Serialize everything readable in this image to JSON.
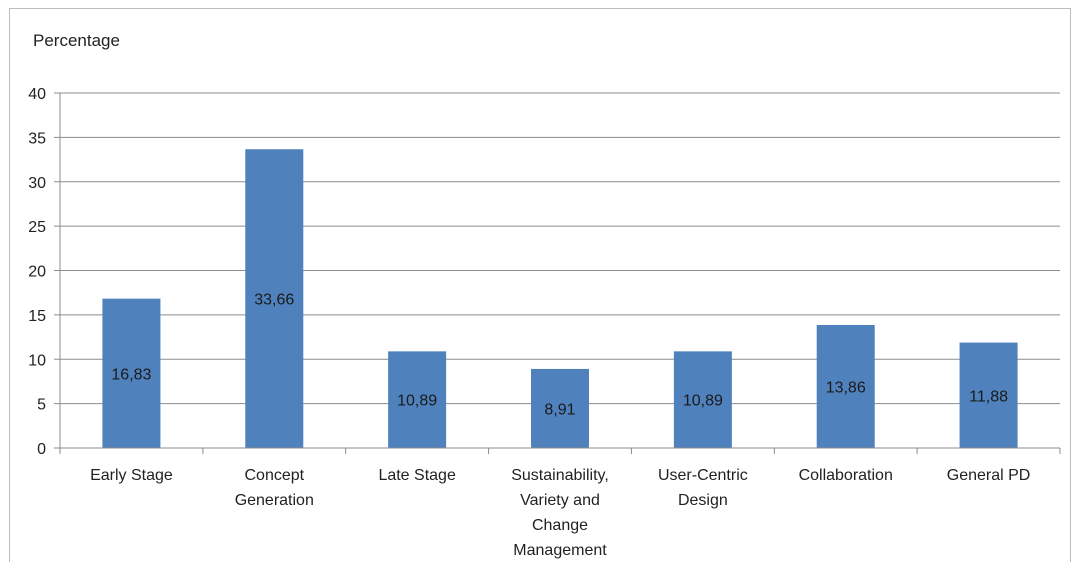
{
  "chart_data": {
    "type": "bar",
    "title": "",
    "ylabel": "Percentage",
    "xlabel": "",
    "ylim": [
      0,
      40
    ],
    "yticks": [
      0,
      5,
      10,
      15,
      20,
      25,
      30,
      35,
      40
    ],
    "grid": true,
    "legend": "none",
    "bar_color": "#4f81bd",
    "categories": [
      [
        "Early Stage"
      ],
      [
        "Concept",
        "Generation"
      ],
      [
        "Late Stage"
      ],
      [
        "Sustainability,",
        "Variety and",
        "Change",
        "Management"
      ],
      [
        "User-Centric",
        "Design"
      ],
      [
        "Collaboration"
      ],
      [
        "General PD"
      ]
    ],
    "values": [
      16.83,
      33.66,
      10.89,
      8.91,
      10.89,
      13.86,
      11.88
    ],
    "data_labels": [
      "16,83",
      "33,66",
      "10,89",
      "8,91",
      "10,89",
      "13,86",
      "11,88"
    ]
  }
}
